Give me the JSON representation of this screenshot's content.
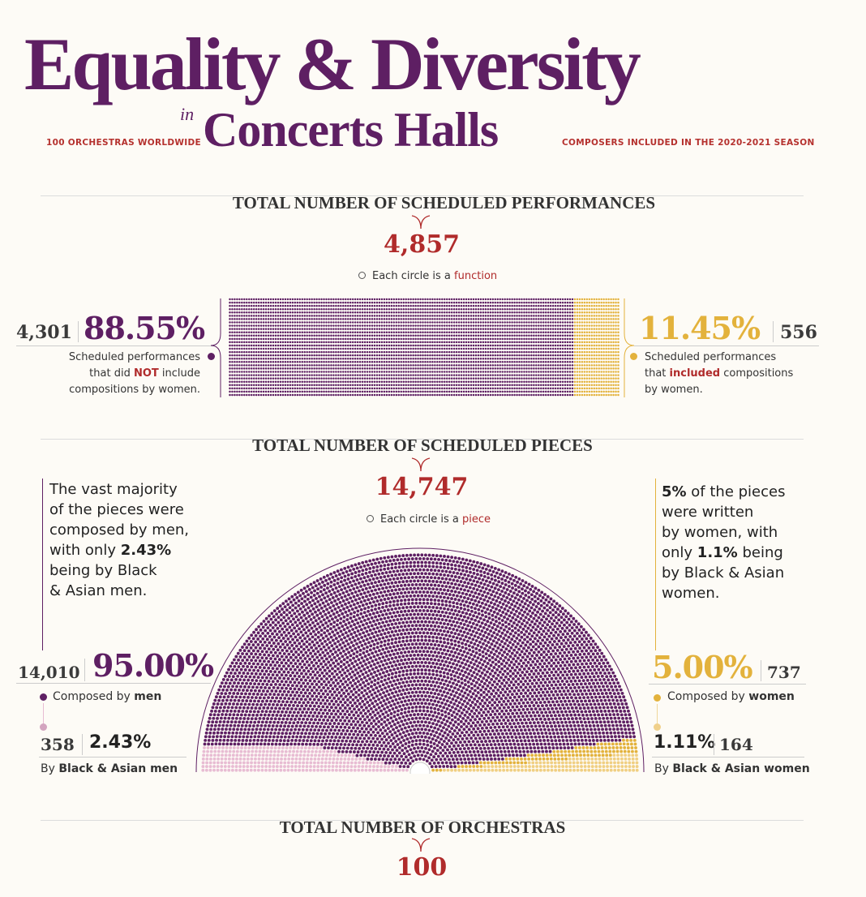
{
  "header": {
    "title_line1": "Equality & Diversity",
    "title_in": "in",
    "title_line2": "Concerts Halls",
    "left_tag": "100 ORCHESTRAS WORLDWIDE",
    "right_tag": "COMPOSERS INCLUDED IN THE 2020-2021 SEASON"
  },
  "colors": {
    "purple": "#5e1f63",
    "gold": "#e3b23c",
    "pink": "#e8bcd3",
    "red": "#b02b2b"
  },
  "performances": {
    "heading": "TOTAL NUMBER OF SCHEDULED PERFORMANCES",
    "total": "4,857",
    "legend_prefix": "Each circle is a ",
    "legend_unit": "function",
    "left_count": "4,301",
    "left_pct": "88.55%",
    "left_desc_1": "Scheduled performances",
    "left_desc_2a": "that did ",
    "left_desc_2b": "NOT",
    "left_desc_2c": " include",
    "left_desc_3": "compositions by women.",
    "right_pct": "11.45%",
    "right_count": "556",
    "right_desc_1": "Scheduled performances",
    "right_desc_2a": "that ",
    "right_desc_2b": "included",
    "right_desc_2c": " compositions",
    "right_desc_3": "by women."
  },
  "pieces": {
    "heading": "TOTAL NUMBER OF SCHEDULED PIECES",
    "total": "14,747",
    "legend_prefix": "Each circle is a ",
    "legend_unit": "piece",
    "left_note_1": "The vast majority",
    "left_note_2": "of the pieces were",
    "left_note_3": "composed by men,",
    "left_note_4a": "with only ",
    "left_note_4b": "2.43%",
    "left_note_5": "being by Black",
    "left_note_6": "& Asian men.",
    "right_note_1a": "5%",
    "right_note_1b": " of the pieces",
    "right_note_2": "were written",
    "right_note_3": "by women, with",
    "right_note_4a": "only ",
    "right_note_4b": "1.1%",
    "right_note_4c": " being",
    "right_note_5": "by Black & Asian",
    "right_note_6": "women.",
    "men_count": "14,010",
    "men_pct": "95.00%",
    "men_label_a": "Composed by ",
    "men_label_b": "men",
    "ba_men_count": "358",
    "ba_men_pct": "2.43%",
    "ba_men_label_a": "By ",
    "ba_men_label_b": "Black & Asian men",
    "women_pct": "5.00%",
    "women_count": "737",
    "women_label_a": "Composed by ",
    "women_label_b": "women",
    "ba_women_pct": "1.11%",
    "ba_women_count": "164",
    "ba_women_label_a": "By ",
    "ba_women_label_b": "Black & Asian women"
  },
  "orchestras": {
    "heading": "TOTAL NUMBER OF ORCHESTRAS",
    "total": "100"
  },
  "chart_data": [
    {
      "type": "waffle",
      "unit": "function",
      "total": 4857,
      "series": [
        {
          "name": "Scheduled performances that did NOT include compositions by women",
          "value": 4301,
          "percent": 88.55
        },
        {
          "name": "Scheduled performances that included compositions by women",
          "value": 556,
          "percent": 11.45
        }
      ]
    },
    {
      "type": "semicircle-dot",
      "unit": "piece",
      "total": 14747,
      "series": [
        {
          "name": "Composed by men",
          "value": 14010,
          "percent": 95.0
        },
        {
          "name": "By Black & Asian men",
          "value": 358,
          "percent": 2.43
        },
        {
          "name": "Composed by women",
          "value": 737,
          "percent": 5.0
        },
        {
          "name": "By Black & Asian women",
          "value": 164,
          "percent": 1.11
        }
      ]
    }
  ]
}
